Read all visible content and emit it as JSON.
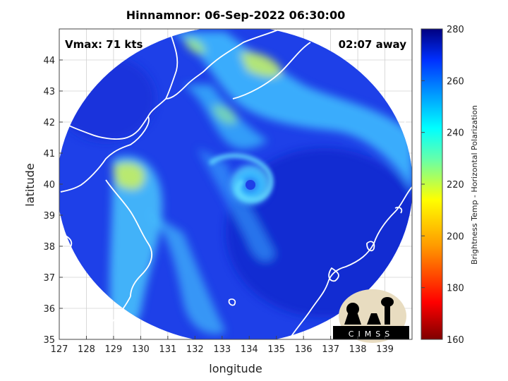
{
  "title": "Hinnamnor: 06-Sep-2022 06:30:00",
  "vmax_label": "Vmax: 71 kts",
  "away_label": "02:07 away",
  "logo_text": "CIMSS",
  "colors": {
    "storm_blue": "#1d3fe6",
    "deep_blue": "#1020c8",
    "cyan": "#33c8ff",
    "yellow_green": "#c8f060",
    "coast": "#ffffff"
  },
  "chart_data": {
    "type": "heatmap",
    "title": "Hinnamnor: 06-Sep-2022 06:30:00",
    "xlabel": "longitude",
    "ylabel": "latitude",
    "xlim": [
      127,
      140
    ],
    "ylim": [
      35,
      45
    ],
    "xticks": [
      127,
      128,
      129,
      130,
      131,
      132,
      133,
      134,
      135,
      136,
      137,
      138,
      139
    ],
    "yticks": [
      35,
      36,
      37,
      38,
      39,
      40,
      41,
      42,
      43,
      44
    ],
    "grid": true,
    "colorbar": {
      "label": "Brightness Temp - Horizontal Polarization",
      "range": [
        160,
        280
      ],
      "ticks": [
        160,
        180,
        200,
        220,
        240,
        260,
        280
      ]
    },
    "storm_center": {
      "lon": 133.8,
      "lat": 40.0
    },
    "annotations": [
      "Vmax: 71 kts",
      "02:07 away"
    ]
  }
}
